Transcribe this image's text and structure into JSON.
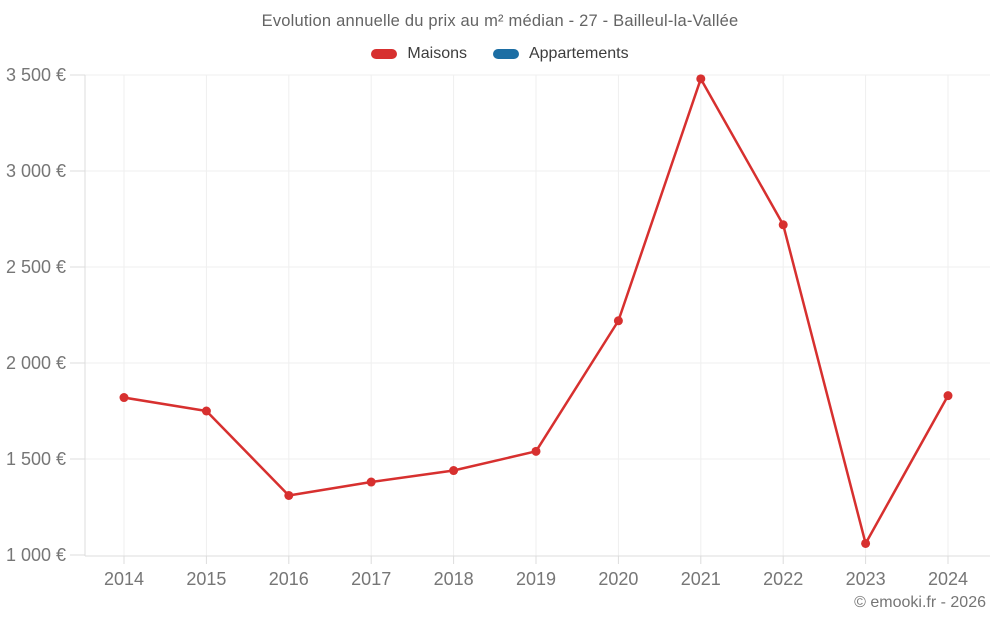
{
  "chart_data": {
    "type": "line",
    "title": "Evolution annuelle du prix au m² médian - 27 - Bailleul-la-Vallée",
    "categories": [
      "2014",
      "2015",
      "2016",
      "2017",
      "2018",
      "2019",
      "2020",
      "2021",
      "2022",
      "2023",
      "2024"
    ],
    "series": [
      {
        "name": "Maisons",
        "color": "#d7302f",
        "values": [
          1820,
          1750,
          1310,
          1380,
          1440,
          1540,
          2220,
          3480,
          2720,
          1060,
          1830
        ]
      },
      {
        "name": "Appartements",
        "color": "#1c6ea4",
        "values": []
      }
    ],
    "xlabel": "",
    "ylabel": "",
    "ylim": [
      1000,
      3500
    ],
    "ytick_step": 500,
    "ytick_labels": [
      "1 000 €",
      "1 500 €",
      "2 000 €",
      "2 500 €",
      "3 000 €",
      "3 500 €"
    ],
    "grid": true,
    "legend_position": "top",
    "colors": {
      "gridline": "#efefef",
      "axis": "#dcdcdc",
      "tick_label": "#767676",
      "title_text": "#646464",
      "legend_text": "#3d3d3d",
      "footer_text": "#757575"
    }
  },
  "footer": {
    "text": "© emooki.fr - 2026"
  }
}
